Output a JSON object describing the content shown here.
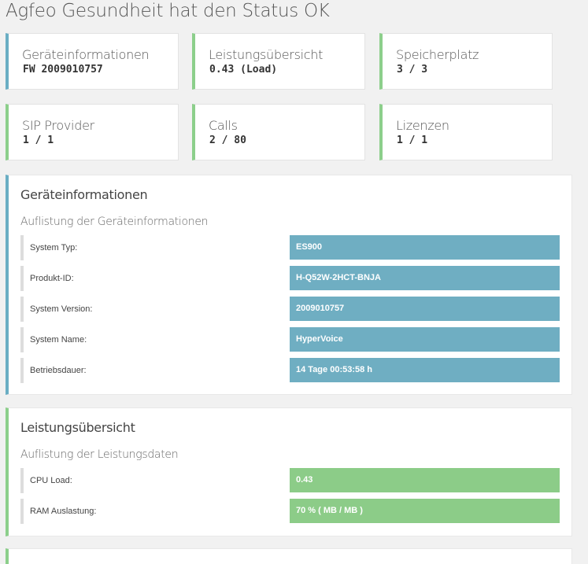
{
  "page": {
    "title": "Agfeo Gesundheit hat den Status OK"
  },
  "tiles": [
    {
      "label": "Geräteinformationen",
      "value": "FW 2009010757",
      "color": "#6aaec4"
    },
    {
      "label": "Leistungsübersicht",
      "value": "0.43 (Load)",
      "color": "#8ccf8b"
    },
    {
      "label": "Speicherplatz",
      "value": "3 / 3",
      "color": "#8ccf8b"
    },
    {
      "label": "SIP Provider",
      "value": "1 / 1",
      "color": "#8ccf8b"
    },
    {
      "label": "Calls",
      "value": "2 / 80",
      "color": "#8ccf8b"
    },
    {
      "label": "Lizenzen",
      "value": "1 / 1",
      "color": "#8ccf8b"
    }
  ],
  "device_panel": {
    "title": "Geräteinformationen",
    "subtitle": "Auflistung der Geräteinformationen",
    "rows": [
      {
        "label": "System Typ:",
        "value": "ES900"
      },
      {
        "label": "Produkt-ID:",
        "value": "H-Q52W-2HCT-BNJA"
      },
      {
        "label": "System Version:",
        "value": "2009010757"
      },
      {
        "label": "System Name:",
        "value": "HyperVoice"
      },
      {
        "label": "Betriebsdauer:",
        "value": "14 Tage 00:53:58 h"
      }
    ]
  },
  "performance_panel": {
    "title": "Leistungsübersicht",
    "subtitle": "Auflistung der Leistungsdaten",
    "rows": [
      {
        "label": "CPU Load:",
        "value": "0.43"
      },
      {
        "label": "RAM Auslastung:",
        "value": "70 % ( MB / MB )"
      }
    ]
  },
  "colors": {
    "info": "#6faec2",
    "ok": "#8ccc88"
  }
}
